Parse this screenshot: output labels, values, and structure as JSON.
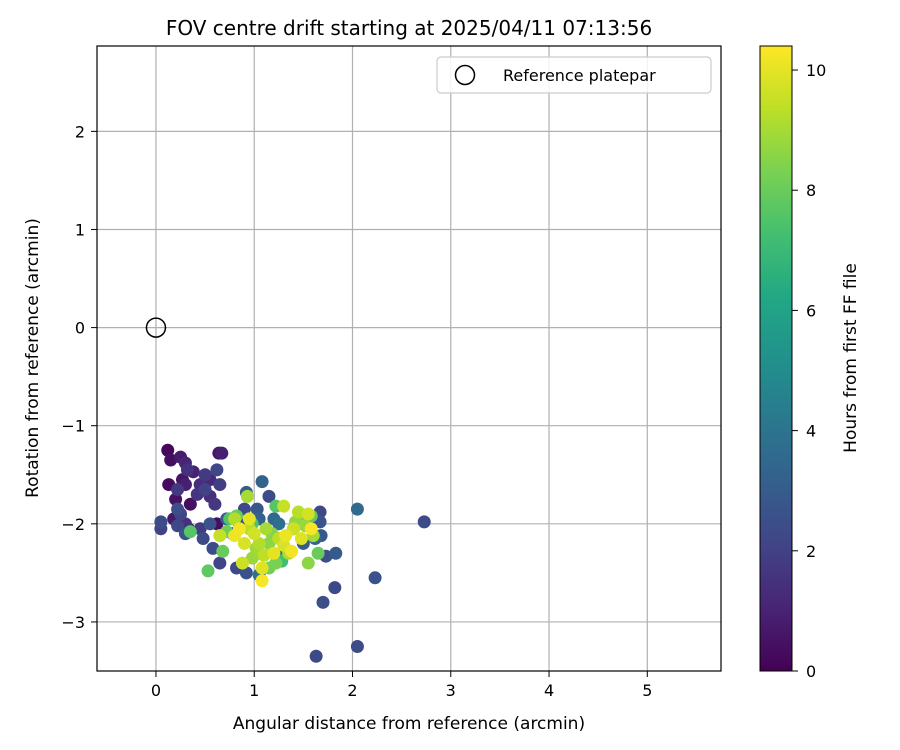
{
  "chart_data": {
    "type": "scatter",
    "title": "FOV centre drift starting at 2025/04/11 07:13:56",
    "xlabel": "Angular distance from reference (arcmin)",
    "ylabel": "Rotation from reference (arcmin)",
    "xlim": [
      -0.6,
      5.75
    ],
    "ylim": [
      -3.5,
      2.87
    ],
    "xticks": [
      0,
      1,
      2,
      3,
      4,
      5
    ],
    "yticks": [
      -3,
      -2,
      -1,
      0,
      1,
      2
    ],
    "grid": true,
    "legend": {
      "placement": "top-right",
      "entries": [
        "Reference platepar"
      ]
    },
    "reference_point": {
      "x": 0,
      "y": 0,
      "marker": "open-circle"
    },
    "colorbar": {
      "label": "Hours from first FF file",
      "range": [
        0,
        10.4
      ],
      "ticks": [
        0,
        2,
        4,
        6,
        8,
        10
      ],
      "colormap": "viridis"
    },
    "points": [
      [
        0.12,
        -1.25,
        0.2
      ],
      [
        0.15,
        -1.35,
        0.4
      ],
      [
        0.25,
        -1.32,
        0.8
      ],
      [
        0.3,
        -1.38,
        1.1
      ],
      [
        0.32,
        -1.45,
        1.5
      ],
      [
        0.38,
        -1.47,
        1.0
      ],
      [
        0.45,
        -1.6,
        1.3
      ],
      [
        0.5,
        -1.5,
        1.8
      ],
      [
        0.55,
        -1.55,
        1.2
      ],
      [
        0.64,
        -1.28,
        0.6
      ],
      [
        0.67,
        -1.28,
        0.9
      ],
      [
        0.62,
        -1.45,
        2.2
      ],
      [
        0.13,
        -1.6,
        0.3
      ],
      [
        0.2,
        -1.75,
        0.5
      ],
      [
        0.27,
        -1.55,
        0.6
      ],
      [
        0.3,
        -1.6,
        0.9
      ],
      [
        0.35,
        -1.8,
        0.4
      ],
      [
        0.42,
        -1.7,
        1.6
      ],
      [
        0.5,
        -1.65,
        2.0
      ],
      [
        0.55,
        -1.72,
        1.4
      ],
      [
        0.6,
        -1.8,
        1.7
      ],
      [
        0.65,
        -1.6,
        1.9
      ],
      [
        0.22,
        -1.65,
        1.7
      ],
      [
        0.25,
        -1.9,
        2.1
      ],
      [
        0.3,
        -2.0,
        1.5
      ],
      [
        0.33,
        -2.05,
        0.5
      ],
      [
        0.45,
        -2.05,
        1.8
      ],
      [
        0.55,
        -2.0,
        2.6
      ],
      [
        0.62,
        -2.0,
        0.4
      ],
      [
        0.05,
        -1.98,
        2.4
      ],
      [
        0.05,
        -2.05,
        2.0
      ],
      [
        0.22,
        -2.02,
        2.2
      ],
      [
        0.3,
        -2.1,
        2.7
      ],
      [
        0.48,
        -2.15,
        2.3
      ],
      [
        0.58,
        -2.25,
        2.4
      ],
      [
        0.65,
        -2.4,
        2.1
      ],
      [
        0.22,
        -1.85,
        2.5
      ],
      [
        0.18,
        -1.95,
        0.7
      ],
      [
        0.72,
        -1.95,
        2.9
      ],
      [
        0.8,
        -1.95,
        1.7
      ],
      [
        0.85,
        -2.0,
        2.5
      ],
      [
        0.78,
        -2.1,
        3.0
      ],
      [
        0.82,
        -2.45,
        2.2
      ],
      [
        0.92,
        -2.5,
        2.6
      ],
      [
        0.9,
        -1.85,
        2.3
      ],
      [
        0.92,
        -1.68,
        3.1
      ],
      [
        1.03,
        -1.85,
        2.8
      ],
      [
        1.08,
        -1.57,
        3.3
      ],
      [
        1.15,
        -1.72,
        2.4
      ],
      [
        1.05,
        -1.95,
        3.2
      ],
      [
        1.2,
        -1.95,
        3.5
      ],
      [
        1.25,
        -2.0,
        3.8
      ],
      [
        1.4,
        -2.05,
        2.6
      ],
      [
        1.5,
        -2.2,
        3.0
      ],
      [
        1.55,
        -2.0,
        2.2
      ],
      [
        1.62,
        -2.15,
        3.4
      ],
      [
        1.67,
        -1.88,
        2.3
      ],
      [
        1.68,
        -2.12,
        2.9
      ],
      [
        1.67,
        -1.98,
        2.7
      ],
      [
        1.73,
        -2.33,
        2.5
      ],
      [
        1.83,
        -2.3,
        2.9
      ],
      [
        1.82,
        -2.65,
        2.3
      ],
      [
        1.7,
        -2.8,
        2.5
      ],
      [
        2.05,
        -1.85,
        3.6
      ],
      [
        2.23,
        -2.55,
        2.6
      ],
      [
        2.05,
        -3.25,
        2.4
      ],
      [
        1.63,
        -3.35,
        2.3
      ],
      [
        2.73,
        -1.98,
        2.4
      ],
      [
        1.05,
        -2.52,
        3.9
      ],
      [
        1.3,
        -2.3,
        3.6
      ],
      [
        0.93,
        -1.72,
        9.0
      ],
      [
        0.82,
        -1.92,
        8.0
      ],
      [
        0.75,
        -1.95,
        7.5
      ],
      [
        0.65,
        -2.12,
        9.5
      ],
      [
        0.68,
        -2.28,
        8.0
      ],
      [
        0.35,
        -2.08,
        7.6
      ],
      [
        0.53,
        -2.48,
        7.8
      ],
      [
        0.85,
        -2.05,
        10.2
      ],
      [
        0.9,
        -2.2,
        9.8
      ],
      [
        0.95,
        -2.05,
        9.3
      ],
      [
        1.0,
        -2.1,
        9.7
      ],
      [
        1.05,
        -2.2,
        9.2
      ],
      [
        0.8,
        -2.12,
        10.1
      ],
      [
        0.88,
        -2.4,
        9.6
      ],
      [
        0.98,
        -2.35,
        8.8
      ],
      [
        1.08,
        -2.45,
        9.9
      ],
      [
        1.08,
        -2.58,
        10.3
      ],
      [
        1.12,
        -2.05,
        9.0
      ],
      [
        1.15,
        -2.2,
        8.6
      ],
      [
        1.2,
        -2.3,
        10.0
      ],
      [
        1.22,
        -2.4,
        8.3
      ],
      [
        1.25,
        -2.15,
        9.4
      ],
      [
        1.28,
        -2.38,
        7.2
      ],
      [
        1.3,
        -2.22,
        9.8
      ],
      [
        1.35,
        -2.3,
        9.1
      ],
      [
        1.38,
        -2.28,
        10.2
      ],
      [
        1.4,
        -2.05,
        9.6
      ],
      [
        1.42,
        -1.98,
        8.7
      ],
      [
        1.45,
        -1.88,
        9.3
      ],
      [
        1.3,
        -1.82,
        9.5
      ],
      [
        1.22,
        -1.82,
        7.6
      ],
      [
        1.5,
        -1.95,
        8.4
      ],
      [
        1.55,
        -1.9,
        9.7
      ],
      [
        1.58,
        -2.05,
        10.3
      ],
      [
        1.6,
        -2.12,
        9.0
      ],
      [
        1.65,
        -2.3,
        8.0
      ],
      [
        1.55,
        -2.4,
        8.6
      ],
      [
        1.58,
        -1.92,
        7.9
      ],
      [
        1.15,
        -2.45,
        8.2
      ],
      [
        1.05,
        -2.3,
        7.8
      ],
      [
        0.98,
        -2.0,
        7.5
      ],
      [
        1.02,
        -2.25,
        8.9
      ],
      [
        1.1,
        -2.32,
        9.4
      ],
      [
        1.18,
        -2.1,
        8.5
      ],
      [
        0.72,
        -2.08,
        8.1
      ],
      [
        0.8,
        -1.95,
        9.2
      ],
      [
        0.95,
        -1.95,
        10.0
      ],
      [
        1.32,
        -2.12,
        10.1
      ],
      [
        1.48,
        -2.15,
        9.9
      ],
      [
        1.52,
        -2.02,
        8.8
      ]
    ]
  }
}
